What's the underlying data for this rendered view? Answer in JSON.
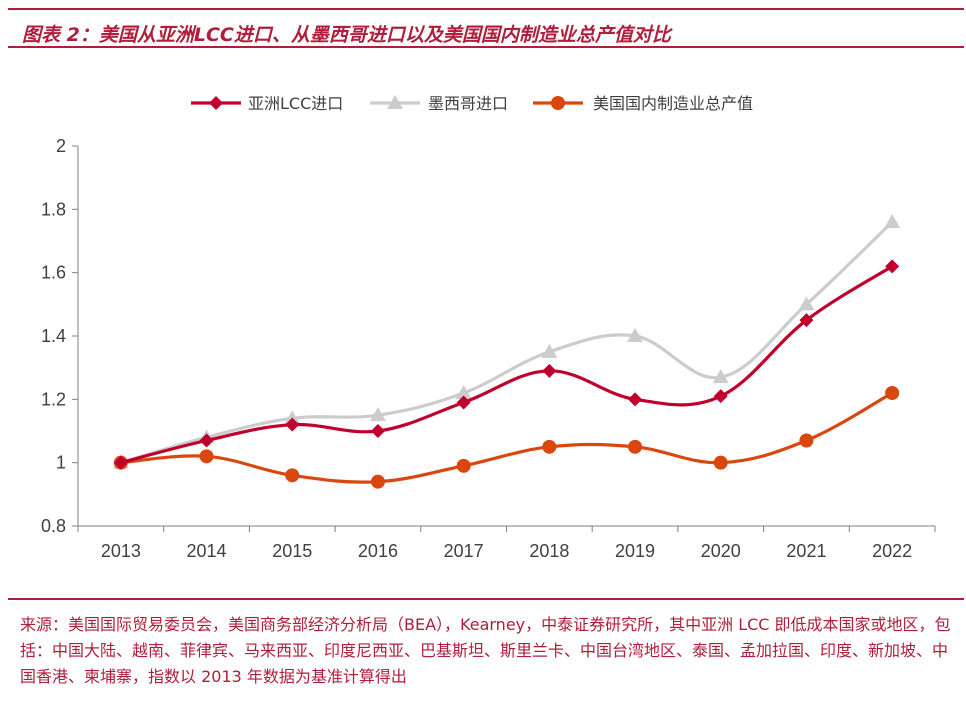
{
  "header": {
    "title": "图表 2：美国从亚洲LCC进口、从墨西哥进口以及美国国内制造业总产值对比"
  },
  "chart_data": {
    "type": "line",
    "title": "图表 2：美国从亚洲LCC进口、从墨西哥进口以及美国国内制造业总产值对比",
    "categories": [
      "2013",
      "2014",
      "2015",
      "2016",
      "2017",
      "2018",
      "2019",
      "2020",
      "2021",
      "2022"
    ],
    "series": [
      {
        "name": "亚洲LCC进口",
        "color": "#c0002c",
        "marker": "diamond",
        "values": [
          1.0,
          1.07,
          1.12,
          1.1,
          1.19,
          1.29,
          1.2,
          1.21,
          1.45,
          1.62
        ]
      },
      {
        "name": "墨西哥进口",
        "color": "#cccccc",
        "marker": "triangle",
        "values": [
          1.0,
          1.08,
          1.14,
          1.15,
          1.22,
          1.35,
          1.4,
          1.27,
          1.5,
          1.76
        ]
      },
      {
        "name": "美国国内制造业总产值",
        "color": "#d9470f",
        "marker": "circle",
        "values": [
          1.0,
          1.02,
          0.96,
          0.94,
          0.99,
          1.05,
          1.05,
          1.0,
          1.07,
          1.22
        ]
      }
    ],
    "ylim": [
      0.8,
      2.0
    ],
    "yticks": [
      "0.8",
      "1",
      "1.2",
      "1.4",
      "1.6",
      "1.8",
      "2"
    ],
    "xlabel": "",
    "ylabel": "",
    "legend": "top-center",
    "grid": false
  },
  "footer": {
    "source": "来源：美国国际贸易委员会，美国商务部经济分析局（BEA），Kearney，中泰证券研究所，其中亚洲 LCC 即低成本国家或地区，包括：中国大陆、越南、菲律宾、马来西亚、印度尼西亚、巴基斯坦、斯里兰卡、中国台湾地区、泰国、孟加拉国、印度、新加坡、中国香港、柬埔寨，指数以 2013 年数据为基准计算得出"
  }
}
